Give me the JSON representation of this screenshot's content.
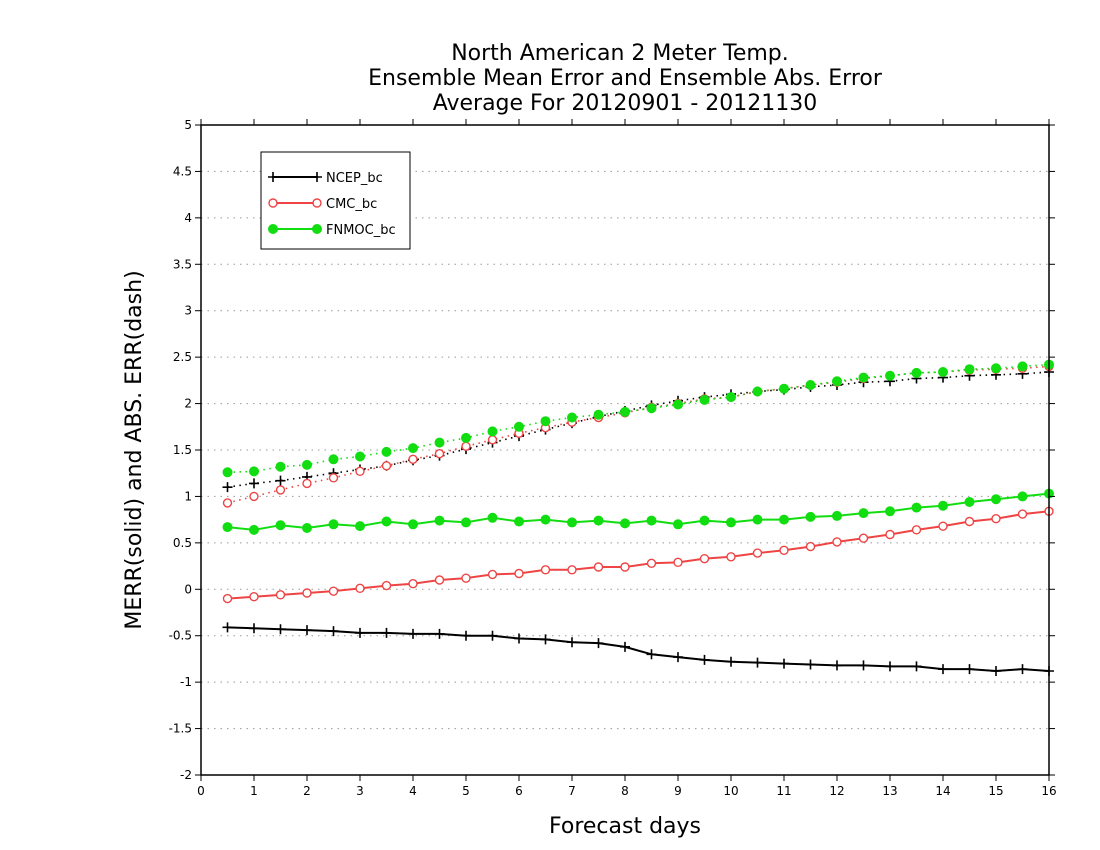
{
  "chart_data": {
    "type": "line",
    "title": [
      "North American 2 Meter Temp.",
      "Ensemble Mean Error and Ensemble Abs. Error",
      "Average For 20120901 - 20121130"
    ],
    "xlabel": "Forecast days",
    "ylabel": "MERR(solid) and ABS. ERR(dash)",
    "xlim": [
      0,
      16
    ],
    "ylim": [
      -2,
      5
    ],
    "xticks": [
      0,
      1,
      2,
      3,
      4,
      5,
      6,
      7,
      8,
      9,
      10,
      11,
      12,
      13,
      14,
      15,
      16
    ],
    "yticks": [
      -2,
      -1.5,
      -1,
      -0.5,
      0,
      0.5,
      1,
      1.5,
      2,
      2.5,
      3,
      3.5,
      4,
      4.5,
      5
    ],
    "ytick_labels": [
      "-2",
      "-1.5",
      "-1",
      "-0.5",
      "0",
      "0.5",
      "1",
      "1.5",
      "2",
      "2.5",
      "3",
      "3.5",
      "4",
      "4.5",
      "5"
    ],
    "grid": "horizontal dotted",
    "legend_position": "top-left",
    "x": [
      0.5,
      1,
      1.5,
      2,
      2.5,
      3,
      3.5,
      4,
      4.5,
      5,
      5.5,
      6,
      6.5,
      7,
      7.5,
      8,
      8.5,
      9,
      9.5,
      10,
      10.5,
      11,
      11.5,
      12,
      12.5,
      13,
      13.5,
      14,
      14.5,
      15,
      15.5,
      16
    ],
    "series": [
      {
        "name": "NCEP_bc",
        "color": "#000000",
        "marker": "plus",
        "mean_error": [
          -0.41,
          -0.42,
          -0.43,
          -0.44,
          -0.45,
          -0.47,
          -0.47,
          -0.48,
          -0.48,
          -0.5,
          -0.5,
          -0.53,
          -0.54,
          -0.57,
          -0.58,
          -0.62,
          -0.7,
          -0.73,
          -0.76,
          -0.78,
          -0.79,
          -0.8,
          -0.81,
          -0.82,
          -0.82,
          -0.83,
          -0.83,
          -0.86,
          -0.86,
          -0.88,
          -0.86,
          -0.88
        ],
        "abs_error": [
          1.1,
          1.14,
          1.17,
          1.21,
          1.25,
          1.29,
          1.33,
          1.39,
          1.44,
          1.51,
          1.58,
          1.65,
          1.72,
          1.79,
          1.86,
          1.92,
          1.98,
          2.03,
          2.07,
          2.1,
          2.13,
          2.15,
          2.18,
          2.2,
          2.23,
          2.24,
          2.27,
          2.28,
          2.3,
          2.31,
          2.32,
          2.34
        ]
      },
      {
        "name": "CMC_bc",
        "color": "#ee4444",
        "marker": "open-circle",
        "mean_error": [
          -0.1,
          -0.08,
          -0.06,
          -0.04,
          -0.02,
          0.01,
          0.04,
          0.06,
          0.1,
          0.12,
          0.16,
          0.17,
          0.21,
          0.21,
          0.24,
          0.24,
          0.28,
          0.29,
          0.33,
          0.35,
          0.39,
          0.42,
          0.46,
          0.51,
          0.55,
          0.59,
          0.64,
          0.68,
          0.73,
          0.76,
          0.81,
          0.84
        ],
        "abs_error": [
          0.93,
          1.0,
          1.07,
          1.14,
          1.2,
          1.27,
          1.33,
          1.4,
          1.46,
          1.54,
          1.61,
          1.68,
          1.74,
          1.8,
          1.85,
          1.9,
          1.96,
          2.0,
          2.05,
          2.07,
          2.13,
          2.16,
          2.2,
          2.23,
          2.27,
          2.3,
          2.33,
          2.34,
          2.36,
          2.37,
          2.38,
          2.4
        ]
      },
      {
        "name": "FNMOC_bc",
        "color": "#11dd11",
        "marker": "filled-circle",
        "mean_error": [
          0.67,
          0.64,
          0.69,
          0.66,
          0.7,
          0.68,
          0.73,
          0.7,
          0.74,
          0.72,
          0.77,
          0.73,
          0.75,
          0.72,
          0.74,
          0.71,
          0.74,
          0.7,
          0.74,
          0.72,
          0.75,
          0.75,
          0.78,
          0.79,
          0.82,
          0.84,
          0.88,
          0.9,
          0.94,
          0.97,
          1.0,
          1.03
        ],
        "abs_error": [
          1.26,
          1.27,
          1.32,
          1.34,
          1.4,
          1.43,
          1.48,
          1.52,
          1.58,
          1.63,
          1.7,
          1.75,
          1.81,
          1.85,
          1.88,
          1.91,
          1.95,
          1.99,
          2.04,
          2.07,
          2.13,
          2.16,
          2.2,
          2.24,
          2.28,
          2.3,
          2.33,
          2.34,
          2.37,
          2.38,
          2.4,
          2.42
        ]
      }
    ]
  }
}
